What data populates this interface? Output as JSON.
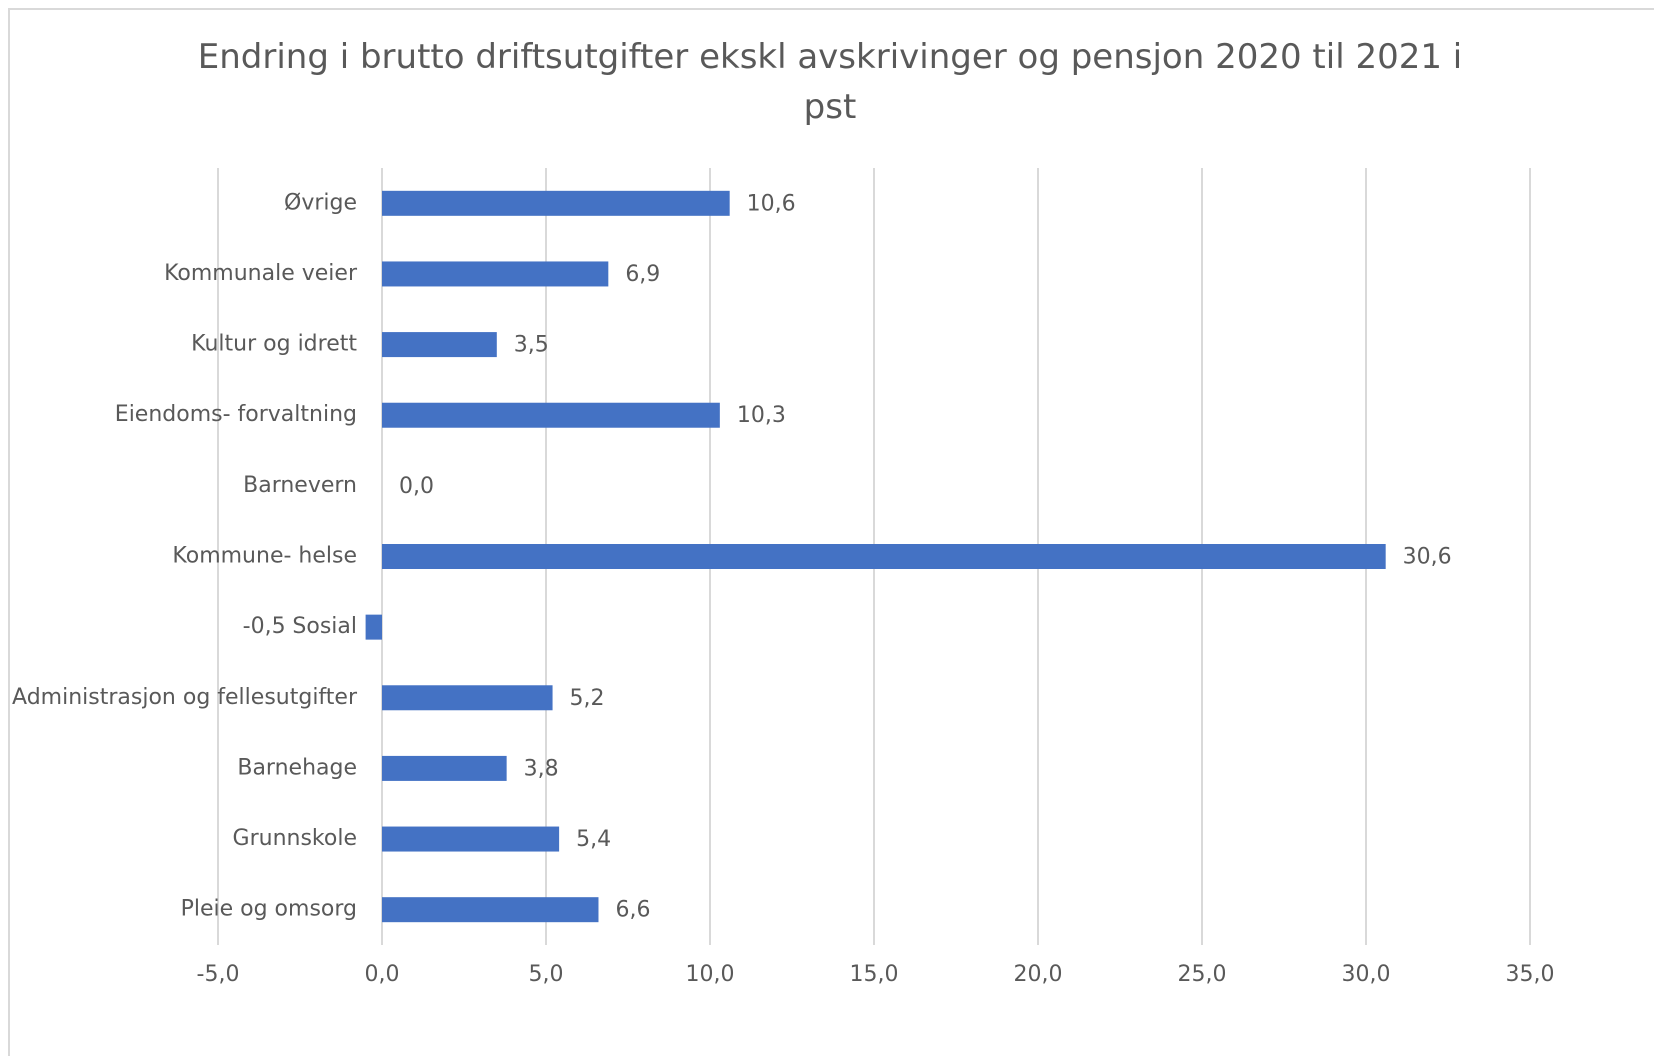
{
  "chart_data": {
    "type": "barh",
    "title": "Endring i brutto driftsutgifter ekskl avskrivinger og pensjon 2020 til 2021 i pst",
    "categories": [
      "Øvrige",
      "Kommunale veier",
      "Kultur og idrett",
      "Eiendoms- forvaltning",
      "Barnevern",
      "Kommune- helse",
      "Sosial",
      "Administrasjon og fellesutgifter",
      "Barnehage",
      "Grunnskole",
      "Pleie og omsorg"
    ],
    "values": [
      10.6,
      6.9,
      3.5,
      10.3,
      0.0,
      30.6,
      -0.5,
      5.2,
      3.8,
      5.4,
      6.6
    ],
    "value_labels": [
      "10,6",
      "6,9",
      "3,5",
      "10,3",
      "0,0",
      "30,6",
      "-0,5",
      "5,2",
      "3,8",
      "5,4",
      "6,6"
    ],
    "color": "#4472c4",
    "xlim": [
      -5,
      35
    ],
    "xticks": [
      {
        "value": -5,
        "label": "-5,0"
      },
      {
        "value": 0,
        "label": "0,0"
      },
      {
        "value": 5,
        "label": "5,0"
      },
      {
        "value": 10,
        "label": "10,0"
      },
      {
        "value": 15,
        "label": "15,0"
      },
      {
        "value": 20,
        "label": "20,0"
      },
      {
        "value": 25,
        "label": "25,0"
      },
      {
        "value": 30,
        "label": "30,0"
      },
      {
        "value": 35,
        "label": "35,0"
      }
    ],
    "grid": true
  }
}
